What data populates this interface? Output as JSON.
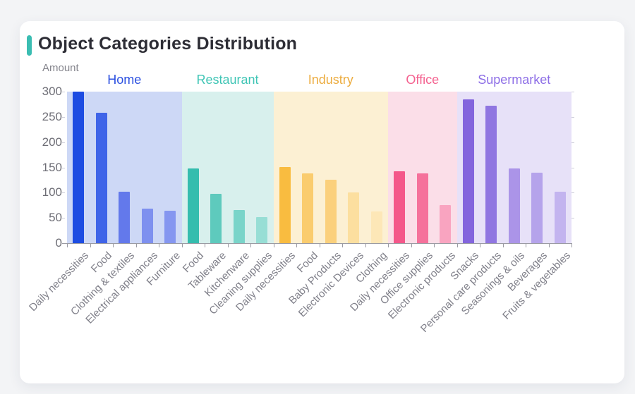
{
  "page": {
    "background": "#f3f4f6"
  },
  "title": {
    "text": "Object Categories Distribution",
    "accent_color": "#3bbdb2"
  },
  "chart_data": {
    "type": "bar",
    "title": "Object Categories Distribution",
    "ylabel": "Amount",
    "xlabel": "",
    "ylim": [
      0,
      300
    ],
    "yticks": [
      0,
      50,
      100,
      150,
      200,
      250,
      300
    ],
    "grid": false,
    "legend_position": "none",
    "group_header_row": [
      "Home",
      "Restaurant",
      "Industry",
      "Office",
      "Supermarket"
    ],
    "groups": [
      {
        "name": "Home",
        "label_color": "#2b50e0",
        "band_color": "#cdd8f6",
        "bars": [
          {
            "label": "Daily necessities",
            "value": 300,
            "color": "#1d4ce2"
          },
          {
            "label": "Food",
            "value": 258,
            "color": "#3f64e8"
          },
          {
            "label": "Clothing & textiles",
            "value": 102,
            "color": "#6379eb"
          },
          {
            "label": "Electrical appliances",
            "value": 68,
            "color": "#7e90ef"
          },
          {
            "label": "Furniture",
            "value": 64,
            "color": "#8596f0"
          }
        ]
      },
      {
        "name": "Restaurant",
        "label_color": "#3fc5b5",
        "band_color": "#d8f0ed",
        "bars": [
          {
            "label": "Food",
            "value": 148,
            "color": "#35bdae"
          },
          {
            "label": "Tableware",
            "value": 97,
            "color": "#5ecabd"
          },
          {
            "label": "Kitchenware",
            "value": 65,
            "color": "#79d4c9"
          },
          {
            "label": "Cleaning supplies",
            "value": 51,
            "color": "#97ded5"
          }
        ]
      },
      {
        "name": "Industry",
        "label_color": "#ecac3f",
        "band_color": "#fcf0d3",
        "bars": [
          {
            "label": "Daily necessities",
            "value": 150,
            "color": "#f9bc40"
          },
          {
            "label": "Food",
            "value": 138,
            "color": "#facc6e"
          },
          {
            "label": "Baby Products",
            "value": 126,
            "color": "#fbd07c"
          },
          {
            "label": "Electronic Devices",
            "value": 100,
            "color": "#fcdf9f"
          },
          {
            "label": "Clothing",
            "value": 63,
            "color": "#fde7b7"
          }
        ]
      },
      {
        "name": "Office",
        "label_color": "#f4618f",
        "band_color": "#fbdee8",
        "bars": [
          {
            "label": "Daily necessities",
            "value": 142,
            "color": "#f4578a"
          },
          {
            "label": "Office supplies",
            "value": 138,
            "color": "#f5719b"
          },
          {
            "label": "Electronic products",
            "value": 75,
            "color": "#f9a4c0"
          }
        ]
      },
      {
        "name": "Supermarket",
        "label_color": "#8d6ee6",
        "band_color": "#e7e1f8",
        "bars": [
          {
            "label": "Snacks",
            "value": 285,
            "color": "#8365dd"
          },
          {
            "label": "Personal care products",
            "value": 272,
            "color": "#9076e1"
          },
          {
            "label": "Seasonings & oils",
            "value": 148,
            "color": "#ab94e8"
          },
          {
            "label": "Beverages",
            "value": 140,
            "color": "#b5a3eb"
          },
          {
            "label": "Fruits & vegetables",
            "value": 102,
            "color": "#c3b4ef"
          }
        ]
      }
    ]
  }
}
